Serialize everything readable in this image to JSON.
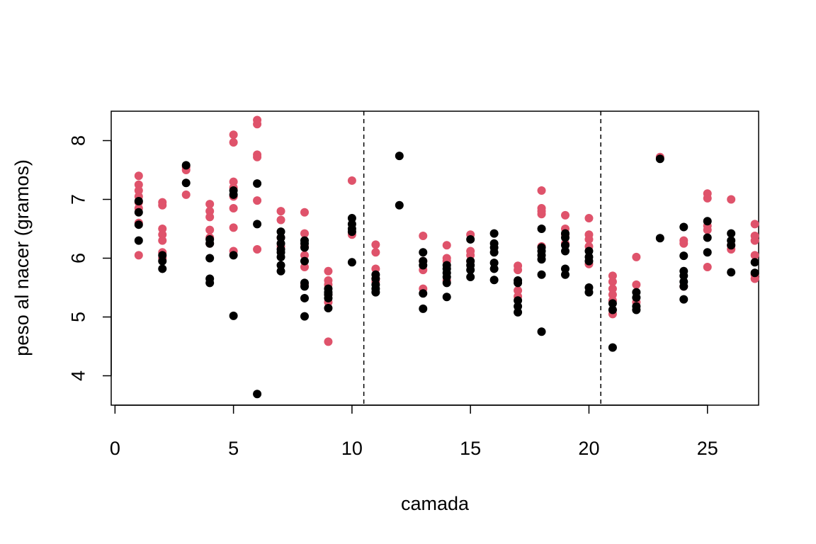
{
  "chart_data": {
    "type": "scatter",
    "title": "",
    "xlabel": "camada",
    "ylabel": "peso al nacer (gramos)",
    "xlim": [
      0,
      28
    ],
    "ylim": [
      3.5,
      8.5
    ],
    "x_ticks": [
      0,
      5,
      10,
      15,
      20,
      25
    ],
    "y_ticks": [
      4,
      5,
      6,
      7,
      8
    ],
    "grid": false,
    "legend": "none",
    "vlines": [
      10.5,
      20.5
    ],
    "colors": {
      "red": "#DF536B",
      "black": "#000000"
    },
    "series": [
      {
        "color": "red",
        "points": [
          [
            1,
            7.4
          ],
          [
            1,
            7.25
          ],
          [
            1,
            7.15
          ],
          [
            1,
            7.05
          ],
          [
            1,
            6.95
          ],
          [
            1,
            6.85
          ],
          [
            1,
            6.6
          ],
          [
            1,
            6.05
          ],
          [
            2,
            6.95
          ],
          [
            2,
            6.9
          ],
          [
            2,
            6.5
          ],
          [
            2,
            6.4
          ],
          [
            2,
            6.3
          ],
          [
            2,
            6.1
          ],
          [
            2,
            6.0
          ],
          [
            3,
            7.55
          ],
          [
            3,
            7.5
          ],
          [
            3,
            7.08
          ],
          [
            4,
            6.92
          ],
          [
            4,
            6.8
          ],
          [
            4,
            6.7
          ],
          [
            4,
            6.48
          ],
          [
            4,
            6.35
          ],
          [
            4,
            6.25
          ],
          [
            5,
            8.1
          ],
          [
            5,
            7.97
          ],
          [
            5,
            7.3
          ],
          [
            5,
            7.2
          ],
          [
            5,
            7.05
          ],
          [
            5,
            6.85
          ],
          [
            5,
            6.52
          ],
          [
            5,
            6.12
          ],
          [
            6,
            8.35
          ],
          [
            6,
            8.28
          ],
          [
            6,
            7.76
          ],
          [
            6,
            7.72
          ],
          [
            6,
            6.98
          ],
          [
            6,
            6.15
          ],
          [
            7,
            6.8
          ],
          [
            7,
            6.65
          ],
          [
            7,
            6.35
          ],
          [
            7,
            6.2
          ],
          [
            8,
            6.78
          ],
          [
            8,
            6.42
          ],
          [
            8,
            6.2
          ],
          [
            8,
            6.05
          ],
          [
            8,
            5.85
          ],
          [
            8,
            5.55
          ],
          [
            9,
            5.78
          ],
          [
            9,
            5.62
          ],
          [
            9,
            5.55
          ],
          [
            9,
            5.38
          ],
          [
            9,
            5.25
          ],
          [
            9,
            4.58
          ],
          [
            10,
            7.32
          ],
          [
            10,
            6.4
          ],
          [
            11,
            6.23
          ],
          [
            11,
            6.1
          ],
          [
            11,
            5.82
          ],
          [
            11,
            5.65
          ],
          [
            11,
            5.6
          ],
          [
            13,
            6.38
          ],
          [
            13,
            5.95
          ],
          [
            13,
            5.8
          ],
          [
            13,
            5.48
          ],
          [
            14,
            6.22
          ],
          [
            14,
            6.0
          ],
          [
            14,
            5.95
          ],
          [
            14,
            5.62
          ],
          [
            15,
            6.4
          ],
          [
            15,
            6.12
          ],
          [
            15,
            6.05
          ],
          [
            15,
            5.95
          ],
          [
            17,
            5.87
          ],
          [
            17,
            5.8
          ],
          [
            17,
            5.45
          ],
          [
            17,
            5.35
          ],
          [
            18,
            7.15
          ],
          [
            18,
            6.85
          ],
          [
            18,
            6.8
          ],
          [
            18,
            6.75
          ],
          [
            18,
            6.2
          ],
          [
            19,
            6.73
          ],
          [
            19,
            6.5
          ],
          [
            19,
            6.4
          ],
          [
            19,
            6.25
          ],
          [
            20,
            6.68
          ],
          [
            20,
            6.4
          ],
          [
            20,
            6.32
          ],
          [
            20,
            6.2
          ],
          [
            20,
            5.9
          ],
          [
            21,
            5.7
          ],
          [
            21,
            5.6
          ],
          [
            21,
            5.48
          ],
          [
            21,
            5.38
          ],
          [
            21,
            5.28
          ],
          [
            21,
            5.12
          ],
          [
            21,
            5.05
          ],
          [
            22,
            6.02
          ],
          [
            22,
            5.55
          ],
          [
            22,
            5.25
          ],
          [
            23,
            7.72
          ],
          [
            24,
            6.3
          ],
          [
            24,
            6.25
          ],
          [
            24,
            5.52
          ],
          [
            25,
            7.1
          ],
          [
            25,
            7.02
          ],
          [
            25,
            6.55
          ],
          [
            25,
            6.48
          ],
          [
            25,
            5.85
          ],
          [
            26,
            7.0
          ],
          [
            26,
            6.22
          ],
          [
            26,
            6.15
          ],
          [
            27,
            6.58
          ],
          [
            27,
            6.38
          ],
          [
            27,
            6.3
          ],
          [
            27,
            6.05
          ],
          [
            27,
            5.72
          ],
          [
            27,
            5.65
          ]
        ]
      },
      {
        "color": "black",
        "points": [
          [
            1,
            6.97
          ],
          [
            1,
            6.78
          ],
          [
            1,
            6.57
          ],
          [
            1,
            6.3
          ],
          [
            2,
            6.05
          ],
          [
            2,
            5.95
          ],
          [
            2,
            5.82
          ],
          [
            3,
            7.58
          ],
          [
            3,
            7.28
          ],
          [
            4,
            6.32
          ],
          [
            4,
            6.25
          ],
          [
            4,
            6.0
          ],
          [
            4,
            5.65
          ],
          [
            4,
            5.58
          ],
          [
            5,
            7.15
          ],
          [
            5,
            7.08
          ],
          [
            5,
            6.05
          ],
          [
            5,
            5.02
          ],
          [
            6,
            7.27
          ],
          [
            6,
            6.58
          ],
          [
            6,
            3.69
          ],
          [
            7,
            6.45
          ],
          [
            7,
            6.35
          ],
          [
            7,
            6.25
          ],
          [
            7,
            6.15
          ],
          [
            7,
            6.1
          ],
          [
            7,
            6.02
          ],
          [
            7,
            5.88
          ],
          [
            7,
            5.78
          ],
          [
            8,
            6.3
          ],
          [
            8,
            6.25
          ],
          [
            8,
            6.18
          ],
          [
            8,
            5.95
          ],
          [
            8,
            5.58
          ],
          [
            8,
            5.52
          ],
          [
            8,
            5.32
          ],
          [
            8,
            5.01
          ],
          [
            9,
            5.48
          ],
          [
            9,
            5.42
          ],
          [
            9,
            5.38
          ],
          [
            9,
            5.32
          ],
          [
            9,
            5.15
          ],
          [
            10,
            6.68
          ],
          [
            10,
            6.58
          ],
          [
            10,
            6.5
          ],
          [
            10,
            6.45
          ],
          [
            10,
            5.93
          ],
          [
            11,
            5.72
          ],
          [
            11,
            5.65
          ],
          [
            11,
            5.55
          ],
          [
            11,
            5.48
          ],
          [
            11,
            5.42
          ],
          [
            12,
            7.74
          ],
          [
            12,
            6.9
          ],
          [
            13,
            6.1
          ],
          [
            13,
            5.95
          ],
          [
            13,
            5.88
          ],
          [
            13,
            5.4
          ],
          [
            13,
            5.14
          ],
          [
            14,
            5.88
          ],
          [
            14,
            5.82
          ],
          [
            14,
            5.75
          ],
          [
            14,
            5.68
          ],
          [
            14,
            5.58
          ],
          [
            14,
            5.34
          ],
          [
            15,
            6.32
          ],
          [
            15,
            5.95
          ],
          [
            15,
            5.88
          ],
          [
            15,
            5.8
          ],
          [
            15,
            5.68
          ],
          [
            16,
            6.42
          ],
          [
            16,
            6.25
          ],
          [
            16,
            6.18
          ],
          [
            16,
            6.1
          ],
          [
            16,
            5.92
          ],
          [
            16,
            5.82
          ],
          [
            16,
            5.63
          ],
          [
            17,
            5.62
          ],
          [
            17,
            5.58
          ],
          [
            17,
            5.28
          ],
          [
            17,
            5.18
          ],
          [
            17,
            5.08
          ],
          [
            18,
            6.5
          ],
          [
            18,
            6.18
          ],
          [
            18,
            6.12
          ],
          [
            18,
            6.05
          ],
          [
            18,
            5.98
          ],
          [
            18,
            5.72
          ],
          [
            18,
            4.75
          ],
          [
            19,
            6.42
          ],
          [
            19,
            6.35
          ],
          [
            19,
            6.22
          ],
          [
            19,
            6.12
          ],
          [
            19,
            5.82
          ],
          [
            19,
            5.72
          ],
          [
            20,
            6.12
          ],
          [
            20,
            6.02
          ],
          [
            20,
            5.95
          ],
          [
            20,
            5.5
          ],
          [
            20,
            5.42
          ],
          [
            21,
            5.23
          ],
          [
            21,
            5.12
          ],
          [
            21,
            4.48
          ],
          [
            22,
            5.42
          ],
          [
            22,
            5.33
          ],
          [
            22,
            5.18
          ],
          [
            22,
            5.12
          ],
          [
            23,
            7.69
          ],
          [
            23,
            6.34
          ],
          [
            24,
            6.53
          ],
          [
            24,
            6.04
          ],
          [
            24,
            5.78
          ],
          [
            24,
            5.7
          ],
          [
            24,
            5.6
          ],
          [
            24,
            5.52
          ],
          [
            24,
            5.3
          ],
          [
            25,
            6.63
          ],
          [
            25,
            6.35
          ],
          [
            25,
            6.1
          ],
          [
            26,
            6.42
          ],
          [
            26,
            6.3
          ],
          [
            26,
            6.22
          ],
          [
            26,
            5.76
          ],
          [
            27,
            5.93
          ],
          [
            27,
            5.75
          ]
        ]
      }
    ]
  }
}
